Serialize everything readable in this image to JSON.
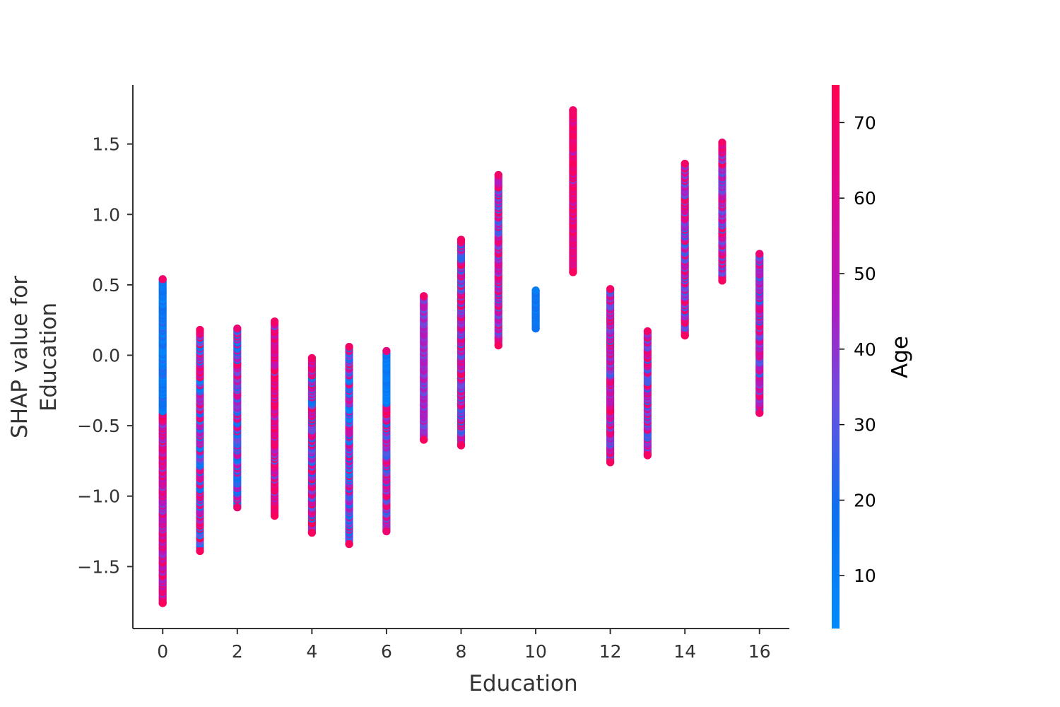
{
  "chart_data": {
    "type": "scatter",
    "title": "",
    "xlabel": "Education",
    "ylabel": "SHAP value for\nEducation",
    "xlim": [
      -0.8,
      16.8
    ],
    "ylim": [
      -1.94,
      1.92
    ],
    "x_ticks": [
      0,
      2,
      4,
      6,
      8,
      10,
      12,
      14,
      16
    ],
    "y_ticks": [
      -1.5,
      -1.0,
      -0.5,
      0.0,
      0.5,
      1.0,
      1.5
    ],
    "y_tick_labels": [
      "−1.5",
      "−1.0",
      "−0.5",
      "0.0",
      "0.5",
      "1.0",
      "1.5"
    ],
    "x_tick_labels": [
      "0",
      "2",
      "4",
      "6",
      "8",
      "10",
      "12",
      "14",
      "16"
    ],
    "grid": false,
    "colorbar": {
      "label": "Age",
      "range": [
        3,
        75
      ],
      "ticks": [
        10,
        20,
        30,
        40,
        50,
        60,
        70
      ],
      "tick_labels": [
        "10",
        "20",
        "30",
        "40",
        "50",
        "60",
        "70"
      ],
      "colors": [
        "#008bfb",
        "#ff0051"
      ]
    },
    "series": [
      {
        "x": 0,
        "y_range": [
          -1.76,
          0.54
        ],
        "age_range": [
          3,
          75
        ],
        "dominant": "mixed-low-blue-high-red"
      },
      {
        "x": 1,
        "y_range": [
          -1.39,
          0.18
        ],
        "age_range": [
          5,
          75
        ],
        "dominant": "mixed"
      },
      {
        "x": 2,
        "y_range": [
          -1.08,
          0.19
        ],
        "age_range": [
          8,
          72
        ],
        "dominant": "mixed"
      },
      {
        "x": 3,
        "y_range": [
          -1.14,
          0.24
        ],
        "age_range": [
          20,
          75
        ],
        "dominant": "red"
      },
      {
        "x": 4,
        "y_range": [
          -1.26,
          -0.02
        ],
        "age_range": [
          10,
          75
        ],
        "dominant": "mixed"
      },
      {
        "x": 5,
        "y_range": [
          -1.34,
          0.06
        ],
        "age_range": [
          5,
          75
        ],
        "dominant": "mixed"
      },
      {
        "x": 6,
        "y_range": [
          -1.25,
          0.03
        ],
        "age_range": [
          5,
          70
        ],
        "dominant": "mixed-blue-top"
      },
      {
        "x": 7,
        "y_range": [
          -0.6,
          0.42
        ],
        "age_range": [
          25,
          75
        ],
        "dominant": "purple"
      },
      {
        "x": 8,
        "y_range": [
          -0.64,
          0.82
        ],
        "age_range": [
          20,
          75
        ],
        "dominant": "mixed"
      },
      {
        "x": 9,
        "y_range": [
          0.07,
          1.28
        ],
        "age_range": [
          25,
          75
        ],
        "dominant": "mixed"
      },
      {
        "x": 10,
        "y_range": [
          0.19,
          0.46
        ],
        "age_range": [
          10,
          20
        ],
        "dominant": "blue"
      },
      {
        "x": 11,
        "y_range": [
          0.59,
          1.74
        ],
        "age_range": [
          35,
          75
        ],
        "dominant": "red"
      },
      {
        "x": 12,
        "y_range": [
          -0.76,
          0.47
        ],
        "age_range": [
          25,
          75
        ],
        "dominant": "mixed"
      },
      {
        "x": 13,
        "y_range": [
          -0.71,
          0.17
        ],
        "age_range": [
          20,
          75
        ],
        "dominant": "mixed"
      },
      {
        "x": 14,
        "y_range": [
          0.14,
          1.36
        ],
        "age_range": [
          22,
          75
        ],
        "dominant": "mixed"
      },
      {
        "x": 15,
        "y_range": [
          0.53,
          1.51
        ],
        "age_range": [
          25,
          75
        ],
        "dominant": "mixed"
      },
      {
        "x": 16,
        "y_range": [
          -0.41,
          0.72
        ],
        "age_range": [
          20,
          72
        ],
        "dominant": "mixed"
      }
    ]
  }
}
